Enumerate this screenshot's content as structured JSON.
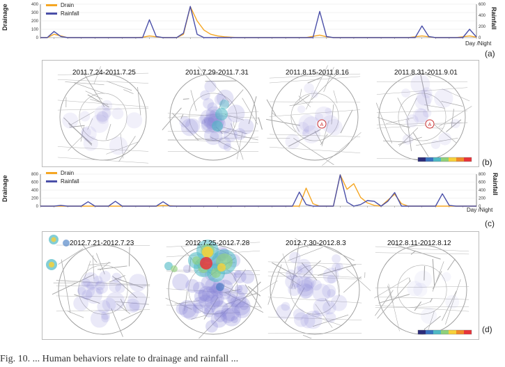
{
  "caption": "Fig. 10. ... Human behaviors relate to drainage and rainfall ...",
  "legend": {
    "drain": "Drain",
    "rainfall": "Rainfall",
    "drain_color": "#f5a623",
    "rain_color": "#4a4fa8"
  },
  "colors": {
    "drain": "#f5a623",
    "rain": "#4a4fa8",
    "hot": "#e8343a",
    "warm": "#f7d13a",
    "cool": "#4fb9c4",
    "haze": "#8a86d6"
  },
  "panels": {
    "a": {
      "letter": "(a)",
      "ylabel_left": "Drainage",
      "ylabel_right": "Rainfall",
      "xlabel": "Day /Night",
      "yticks_left": [
        "0",
        "100",
        "200",
        "300",
        "400"
      ],
      "yticks_right": [
        "0",
        "200",
        "400",
        "600"
      ]
    },
    "b": {
      "letter": "(b)",
      "maps": [
        {
          "label": "2011.7.24-2011.7.25",
          "marker": ""
        },
        {
          "label": "2011.7.29-2011.7.31",
          "marker": ""
        },
        {
          "label": "2011.8.15-2011.8.16",
          "marker": "A"
        },
        {
          "label": "2011.8.31-2011.9.01",
          "marker": "A"
        }
      ]
    },
    "c": {
      "letter": "(c)",
      "ylabel_left": "Drainage",
      "ylabel_right": "Rainfall",
      "xlabel": "Day /Night",
      "yticks_left": [
        "0",
        "200",
        "400",
        "600",
        "800"
      ],
      "yticks_right": [
        "0",
        "200",
        "400",
        "600",
        "800"
      ]
    },
    "d": {
      "letter": "(d)",
      "maps": [
        {
          "label": "2012.7.21-2012.7.23"
        },
        {
          "label": "2012.7.25-2012.7.28"
        },
        {
          "label": "2012.7.30-2012.8.3"
        },
        {
          "label": "2012.8.11-2012.8.12"
        }
      ]
    }
  },
  "chart_data": [
    {
      "type": "line",
      "series": [
        {
          "name": "Drain",
          "x": [
            0,
            1,
            2,
            3,
            4,
            5,
            6,
            7,
            8,
            9,
            10,
            11,
            12,
            13,
            14,
            15,
            16,
            17,
            18,
            19,
            20,
            21,
            22,
            23,
            24,
            25,
            26,
            27,
            28,
            29,
            30,
            31,
            32,
            33,
            34,
            35,
            36,
            37,
            38,
            39,
            40,
            41,
            42,
            43,
            44,
            45,
            46,
            47,
            48,
            49,
            50,
            51,
            52,
            53,
            54,
            55,
            56,
            57,
            58,
            59,
            60,
            61,
            62,
            63,
            64
          ],
          "values": [
            0,
            0,
            40,
            20,
            0,
            0,
            0,
            0,
            0,
            0,
            0,
            0,
            0,
            0,
            0,
            5,
            20,
            10,
            0,
            0,
            0,
            40,
            370,
            200,
            90,
            40,
            20,
            10,
            5,
            0,
            0,
            0,
            0,
            0,
            0,
            0,
            0,
            0,
            0,
            0,
            15,
            30,
            10,
            0,
            0,
            0,
            0,
            0,
            0,
            0,
            0,
            0,
            0,
            0,
            0,
            10,
            20,
            10,
            0,
            0,
            0,
            0,
            10,
            20,
            5
          ]
        },
        {
          "name": "Rainfall",
          "x": [
            0,
            1,
            2,
            3,
            4,
            5,
            6,
            7,
            8,
            9,
            10,
            11,
            12,
            13,
            14,
            15,
            16,
            17,
            18,
            19,
            20,
            21,
            22,
            23,
            24,
            25,
            26,
            27,
            28,
            29,
            30,
            31,
            32,
            33,
            34,
            35,
            36,
            37,
            38,
            39,
            40,
            41,
            42,
            43,
            44,
            45,
            46,
            47,
            48,
            49,
            50,
            51,
            52,
            53,
            54,
            55,
            56,
            57,
            58,
            59,
            60,
            61,
            62,
            63,
            64
          ],
          "values": [
            0,
            0,
            110,
            20,
            0,
            0,
            0,
            0,
            0,
            0,
            0,
            0,
            0,
            0,
            0,
            0,
            320,
            20,
            0,
            0,
            0,
            80,
            560,
            60,
            0,
            0,
            0,
            0,
            0,
            0,
            0,
            0,
            0,
            0,
            0,
            0,
            0,
            0,
            0,
            0,
            0,
            470,
            20,
            0,
            0,
            0,
            0,
            0,
            0,
            0,
            0,
            0,
            0,
            0,
            0,
            0,
            210,
            20,
            0,
            0,
            0,
            0,
            0,
            150,
            10
          ]
        }
      ],
      "ylim_left": [
        0,
        400
      ],
      "ylim_right": [
        0,
        600
      ]
    },
    {
      "type": "line",
      "series": [
        {
          "name": "Drain",
          "x": [
            0,
            1,
            2,
            3,
            4,
            5,
            6,
            7,
            8,
            9,
            10,
            11,
            12,
            13,
            14,
            15,
            16,
            17,
            18,
            19,
            20,
            21,
            22,
            23,
            24,
            25,
            26,
            27,
            28,
            29,
            30,
            31,
            32,
            33,
            34,
            35,
            36,
            37,
            38,
            39,
            40,
            41,
            42,
            43,
            44,
            45,
            46,
            47,
            48,
            49,
            50,
            51,
            52,
            53,
            54,
            55,
            56,
            57,
            58,
            59,
            60,
            61,
            62,
            63,
            64
          ],
          "values": [
            0,
            0,
            0,
            0,
            0,
            0,
            0,
            0,
            0,
            0,
            0,
            0,
            0,
            0,
            0,
            0,
            0,
            0,
            20,
            10,
            0,
            0,
            0,
            0,
            0,
            0,
            0,
            0,
            0,
            0,
            0,
            0,
            0,
            0,
            0,
            0,
            0,
            0,
            0,
            450,
            60,
            0,
            0,
            0,
            780,
            420,
            560,
            220,
            80,
            20,
            0,
            150,
            300,
            60,
            0,
            0,
            0,
            0,
            0,
            0,
            0,
            0,
            0,
            0,
            0
          ]
        },
        {
          "name": "Rainfall",
          "x": [
            0,
            1,
            2,
            3,
            4,
            5,
            6,
            7,
            8,
            9,
            10,
            11,
            12,
            13,
            14,
            15,
            16,
            17,
            18,
            19,
            20,
            21,
            22,
            23,
            24,
            25,
            26,
            27,
            28,
            29,
            30,
            31,
            32,
            33,
            34,
            35,
            36,
            37,
            38,
            39,
            40,
            41,
            42,
            43,
            44,
            45,
            46,
            47,
            48,
            49,
            50,
            51,
            52,
            53,
            54,
            55,
            56,
            57,
            58,
            59,
            60,
            61,
            62,
            63,
            64
          ],
          "values": [
            0,
            0,
            0,
            20,
            0,
            0,
            0,
            110,
            0,
            0,
            0,
            120,
            0,
            0,
            0,
            0,
            0,
            0,
            110,
            0,
            0,
            0,
            0,
            0,
            0,
            0,
            0,
            0,
            0,
            0,
            0,
            0,
            0,
            0,
            0,
            0,
            0,
            0,
            350,
            40,
            0,
            0,
            0,
            0,
            780,
            100,
            0,
            40,
            140,
            120,
            0,
            120,
            340,
            0,
            0,
            0,
            0,
            0,
            0,
            310,
            20,
            0,
            0,
            0,
            0
          ]
        }
      ],
      "ylim_left": [
        0,
        800
      ],
      "ylim_right": [
        0,
        800
      ]
    }
  ]
}
